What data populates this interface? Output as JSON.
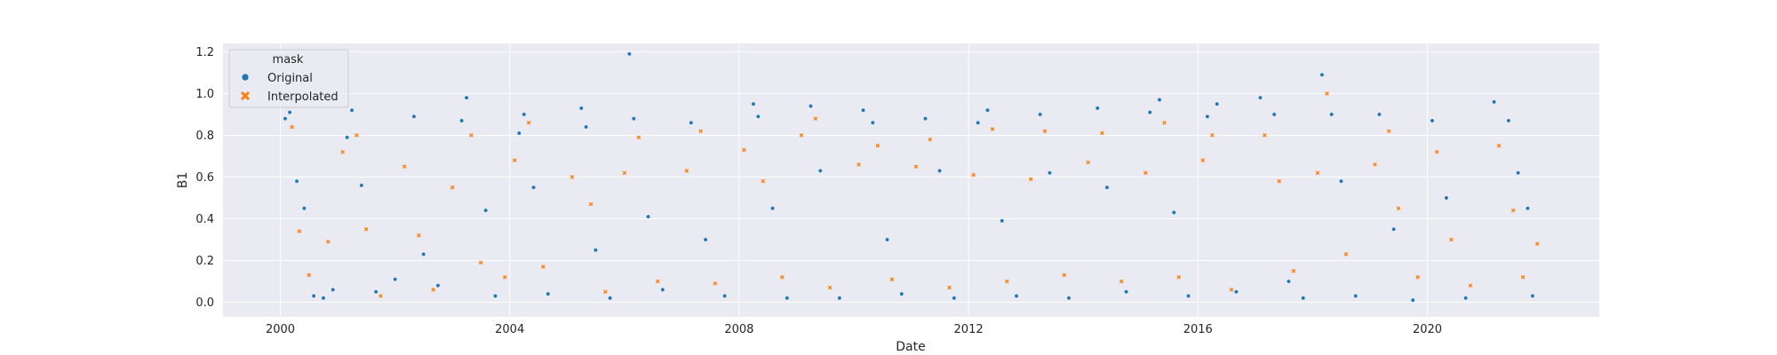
{
  "chart_data": {
    "type": "scatter",
    "title": "",
    "xlabel": "Date",
    "ylabel": "B1",
    "x_ticks": [
      "2000",
      "2004",
      "2008",
      "2012",
      "2016",
      "2020"
    ],
    "y_ticks": [
      "0.0",
      "0.2",
      "0.4",
      "0.6",
      "0.8",
      "1.0",
      "1.2"
    ],
    "xlim": [
      "1999-01-01",
      "2022-12-31"
    ],
    "ylim": [
      -0.07,
      1.24
    ],
    "grid": true,
    "legend": {
      "title": "mask",
      "position": "top-left"
    },
    "colors": {
      "Original": "#1f77b4",
      "Interpolated": "#ff7f0e",
      "background": "#eaeaf2",
      "grid": "#ffffff"
    },
    "series": [
      {
        "name": "Original",
        "marker": "circle",
        "points": [
          {
            "x": "2000-02-01",
            "y": 0.88
          },
          {
            "x": "2000-03-01",
            "y": 0.91
          },
          {
            "x": "2000-04-15",
            "y": 0.58
          },
          {
            "x": "2000-06-01",
            "y": 0.45
          },
          {
            "x": "2000-08-01",
            "y": 0.03
          },
          {
            "x": "2000-10-01",
            "y": 0.02
          },
          {
            "x": "2000-12-01",
            "y": 0.06
          },
          {
            "x": "2001-03-01",
            "y": 0.79
          },
          {
            "x": "2001-04-01",
            "y": 0.92
          },
          {
            "x": "2001-06-01",
            "y": 0.56
          },
          {
            "x": "2001-09-01",
            "y": 0.05
          },
          {
            "x": "2002-01-01",
            "y": 0.11
          },
          {
            "x": "2002-05-01",
            "y": 0.89
          },
          {
            "x": "2002-07-01",
            "y": 0.23
          },
          {
            "x": "2002-10-01",
            "y": 0.08
          },
          {
            "x": "2003-03-01",
            "y": 0.87
          },
          {
            "x": "2003-04-01",
            "y": 0.98
          },
          {
            "x": "2003-08-01",
            "y": 0.44
          },
          {
            "x": "2003-10-01",
            "y": 0.03
          },
          {
            "x": "2004-03-01",
            "y": 0.81
          },
          {
            "x": "2004-04-01",
            "y": 0.9
          },
          {
            "x": "2004-06-01",
            "y": 0.55
          },
          {
            "x": "2004-09-01",
            "y": 0.04
          },
          {
            "x": "2005-04-01",
            "y": 0.93
          },
          {
            "x": "2005-05-01",
            "y": 0.84
          },
          {
            "x": "2005-07-01",
            "y": 0.25
          },
          {
            "x": "2005-10-01",
            "y": 0.02
          },
          {
            "x": "2006-02-01",
            "y": 1.19
          },
          {
            "x": "2006-03-01",
            "y": 0.88
          },
          {
            "x": "2006-06-01",
            "y": 0.41
          },
          {
            "x": "2006-09-01",
            "y": 0.06
          },
          {
            "x": "2007-03-01",
            "y": 0.86
          },
          {
            "x": "2007-06-01",
            "y": 0.3
          },
          {
            "x": "2007-10-01",
            "y": 0.03
          },
          {
            "x": "2008-04-01",
            "y": 0.95
          },
          {
            "x": "2008-05-01",
            "y": 0.89
          },
          {
            "x": "2008-08-01",
            "y": 0.45
          },
          {
            "x": "2008-11-01",
            "y": 0.02
          },
          {
            "x": "2009-04-01",
            "y": 0.94
          },
          {
            "x": "2009-06-01",
            "y": 0.63
          },
          {
            "x": "2009-10-01",
            "y": 0.02
          },
          {
            "x": "2010-03-01",
            "y": 0.92
          },
          {
            "x": "2010-05-01",
            "y": 0.86
          },
          {
            "x": "2010-08-01",
            "y": 0.3
          },
          {
            "x": "2010-11-01",
            "y": 0.04
          },
          {
            "x": "2011-04-01",
            "y": 0.88
          },
          {
            "x": "2011-07-01",
            "y": 0.63
          },
          {
            "x": "2011-10-01",
            "y": 0.02
          },
          {
            "x": "2012-03-01",
            "y": 0.86
          },
          {
            "x": "2012-05-01",
            "y": 0.92
          },
          {
            "x": "2012-08-01",
            "y": 0.39
          },
          {
            "x": "2012-11-01",
            "y": 0.03
          },
          {
            "x": "2013-04-01",
            "y": 0.9
          },
          {
            "x": "2013-06-01",
            "y": 0.62
          },
          {
            "x": "2013-10-01",
            "y": 0.02
          },
          {
            "x": "2014-04-01",
            "y": 0.93
          },
          {
            "x": "2014-06-01",
            "y": 0.55
          },
          {
            "x": "2014-10-01",
            "y": 0.05
          },
          {
            "x": "2015-03-01",
            "y": 0.91
          },
          {
            "x": "2015-05-01",
            "y": 0.97
          },
          {
            "x": "2015-08-01",
            "y": 0.43
          },
          {
            "x": "2015-11-01",
            "y": 0.03
          },
          {
            "x": "2016-03-01",
            "y": 0.89
          },
          {
            "x": "2016-05-01",
            "y": 0.95
          },
          {
            "x": "2016-09-01",
            "y": 0.05
          },
          {
            "x": "2017-02-01",
            "y": 0.98
          },
          {
            "x": "2017-05-01",
            "y": 0.9
          },
          {
            "x": "2017-08-01",
            "y": 0.1
          },
          {
            "x": "2017-11-01",
            "y": 0.02
          },
          {
            "x": "2018-03-01",
            "y": 1.09
          },
          {
            "x": "2018-05-01",
            "y": 0.9
          },
          {
            "x": "2018-07-01",
            "y": 0.58
          },
          {
            "x": "2018-10-01",
            "y": 0.03
          },
          {
            "x": "2019-03-01",
            "y": 0.9
          },
          {
            "x": "2019-06-01",
            "y": 0.35
          },
          {
            "x": "2019-10-01",
            "y": 0.01
          },
          {
            "x": "2020-02-01",
            "y": 0.87
          },
          {
            "x": "2020-05-01",
            "y": 0.5
          },
          {
            "x": "2020-09-01",
            "y": 0.02
          },
          {
            "x": "2021-03-01",
            "y": 0.96
          },
          {
            "x": "2021-06-01",
            "y": 0.87
          },
          {
            "x": "2021-08-01",
            "y": 0.62
          },
          {
            "x": "2021-10-01",
            "y": 0.45
          },
          {
            "x": "2021-11-01",
            "y": 0.03
          }
        ]
      },
      {
        "name": "Interpolated",
        "marker": "x",
        "points": [
          {
            "x": "2000-03-15",
            "y": 0.84
          },
          {
            "x": "2000-05-01",
            "y": 0.34
          },
          {
            "x": "2000-07-01",
            "y": 0.13
          },
          {
            "x": "2000-11-01",
            "y": 0.29
          },
          {
            "x": "2001-02-01",
            "y": 0.72
          },
          {
            "x": "2001-05-01",
            "y": 0.8
          },
          {
            "x": "2001-07-01",
            "y": 0.35
          },
          {
            "x": "2001-10-01",
            "y": 0.03
          },
          {
            "x": "2002-03-01",
            "y": 0.65
          },
          {
            "x": "2002-06-01",
            "y": 0.32
          },
          {
            "x": "2002-09-01",
            "y": 0.06
          },
          {
            "x": "2003-01-01",
            "y": 0.55
          },
          {
            "x": "2003-05-01",
            "y": 0.8
          },
          {
            "x": "2003-07-01",
            "y": 0.19
          },
          {
            "x": "2003-12-01",
            "y": 0.12
          },
          {
            "x": "2004-02-01",
            "y": 0.68
          },
          {
            "x": "2004-05-01",
            "y": 0.86
          },
          {
            "x": "2004-08-01",
            "y": 0.17
          },
          {
            "x": "2005-02-01",
            "y": 0.6
          },
          {
            "x": "2005-06-01",
            "y": 0.47
          },
          {
            "x": "2005-09-01",
            "y": 0.05
          },
          {
            "x": "2006-01-01",
            "y": 0.62
          },
          {
            "x": "2006-04-01",
            "y": 0.79
          },
          {
            "x": "2006-08-01",
            "y": 0.1
          },
          {
            "x": "2007-02-01",
            "y": 0.63
          },
          {
            "x": "2007-05-01",
            "y": 0.82
          },
          {
            "x": "2007-08-01",
            "y": 0.09
          },
          {
            "x": "2008-02-01",
            "y": 0.73
          },
          {
            "x": "2008-06-01",
            "y": 0.58
          },
          {
            "x": "2008-10-01",
            "y": 0.12
          },
          {
            "x": "2009-02-01",
            "y": 0.8
          },
          {
            "x": "2009-05-01",
            "y": 0.88
          },
          {
            "x": "2009-08-01",
            "y": 0.07
          },
          {
            "x": "2010-02-01",
            "y": 0.66
          },
          {
            "x": "2010-06-01",
            "y": 0.75
          },
          {
            "x": "2010-09-01",
            "y": 0.11
          },
          {
            "x": "2011-02-01",
            "y": 0.65
          },
          {
            "x": "2011-05-01",
            "y": 0.78
          },
          {
            "x": "2011-09-01",
            "y": 0.07
          },
          {
            "x": "2012-02-01",
            "y": 0.61
          },
          {
            "x": "2012-06-01",
            "y": 0.83
          },
          {
            "x": "2012-09-01",
            "y": 0.1
          },
          {
            "x": "2013-02-01",
            "y": 0.59
          },
          {
            "x": "2013-05-01",
            "y": 0.82
          },
          {
            "x": "2013-09-01",
            "y": 0.13
          },
          {
            "x": "2014-02-01",
            "y": 0.67
          },
          {
            "x": "2014-05-01",
            "y": 0.81
          },
          {
            "x": "2014-09-01",
            "y": 0.1
          },
          {
            "x": "2015-02-01",
            "y": 0.62
          },
          {
            "x": "2015-06-01",
            "y": 0.86
          },
          {
            "x": "2015-09-01",
            "y": 0.12
          },
          {
            "x": "2016-02-01",
            "y": 0.68
          },
          {
            "x": "2016-04-01",
            "y": 0.8
          },
          {
            "x": "2016-08-01",
            "y": 0.06
          },
          {
            "x": "2017-03-01",
            "y": 0.8
          },
          {
            "x": "2017-06-01",
            "y": 0.58
          },
          {
            "x": "2017-09-01",
            "y": 0.15
          },
          {
            "x": "2018-02-01",
            "y": 0.62
          },
          {
            "x": "2018-04-01",
            "y": 1.0
          },
          {
            "x": "2018-08-01",
            "y": 0.23
          },
          {
            "x": "2019-02-01",
            "y": 0.66
          },
          {
            "x": "2019-05-01",
            "y": 0.82
          },
          {
            "x": "2019-07-01",
            "y": 0.45
          },
          {
            "x": "2019-11-01",
            "y": 0.12
          },
          {
            "x": "2020-03-01",
            "y": 0.72
          },
          {
            "x": "2020-06-01",
            "y": 0.3
          },
          {
            "x": "2020-10-01",
            "y": 0.08
          },
          {
            "x": "2021-04-01",
            "y": 0.75
          },
          {
            "x": "2021-07-01",
            "y": 0.44
          },
          {
            "x": "2021-09-01",
            "y": 0.12
          },
          {
            "x": "2021-12-01",
            "y": 0.28
          }
        ]
      }
    ]
  }
}
